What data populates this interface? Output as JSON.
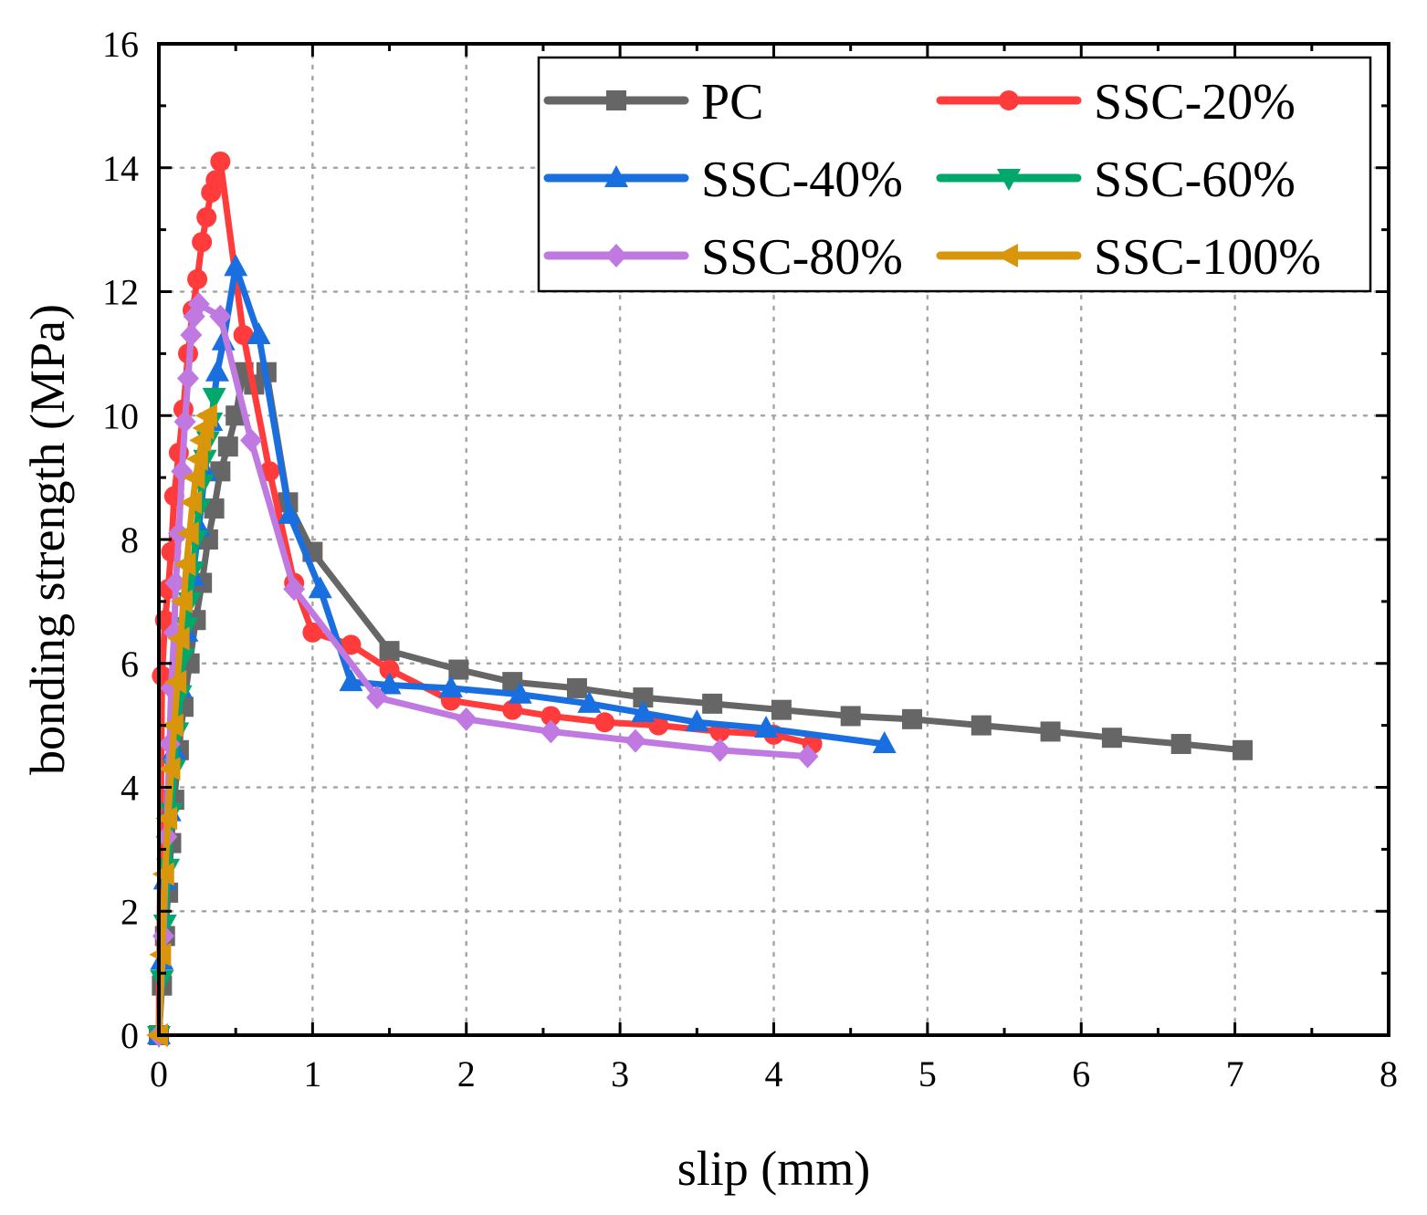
{
  "chart_data": {
    "type": "line",
    "title": "",
    "xlabel": "slip (mm)",
    "ylabel": "bonding strength (MPa)",
    "xlim": [
      0,
      8
    ],
    "ylim": [
      0,
      16
    ],
    "xticks": [
      "0",
      "1",
      "2",
      "3",
      "4",
      "5",
      "6",
      "7",
      "8"
    ],
    "yticks": [
      "0",
      "2",
      "4",
      "6",
      "8",
      "10",
      "12",
      "14",
      "16"
    ],
    "grid": true,
    "legend_position": "top-right",
    "series": [
      {
        "name": "PC",
        "color": "#666666",
        "marker": "square",
        "x": [
          0.0,
          0.02,
          0.04,
          0.06,
          0.08,
          0.1,
          0.13,
          0.16,
          0.2,
          0.24,
          0.28,
          0.32,
          0.36,
          0.4,
          0.45,
          0.5,
          0.55,
          0.62,
          0.7,
          0.84,
          1.0,
          1.5,
          1.95,
          2.3,
          2.72,
          3.15,
          3.6,
          4.05,
          4.5,
          4.9,
          5.35,
          5.8,
          6.2,
          6.65,
          7.05
        ],
        "y": [
          0.0,
          0.8,
          1.6,
          2.3,
          3.1,
          3.8,
          4.6,
          5.3,
          6.0,
          6.7,
          7.3,
          8.0,
          8.5,
          9.1,
          9.5,
          10.0,
          10.7,
          10.5,
          10.7,
          8.6,
          7.8,
          6.2,
          5.9,
          5.7,
          5.6,
          5.45,
          5.35,
          5.25,
          5.15,
          5.1,
          5.0,
          4.9,
          4.8,
          4.7,
          4.6
        ]
      },
      {
        "name": "SSC-20%",
        "color": "#ff3b3b",
        "marker": "circle",
        "x": [
          0.0,
          0.02,
          0.04,
          0.06,
          0.08,
          0.1,
          0.13,
          0.16,
          0.19,
          0.22,
          0.25,
          0.28,
          0.31,
          0.34,
          0.37,
          0.4,
          0.55,
          0.72,
          0.88,
          1.0,
          1.25,
          1.5,
          1.9,
          2.3,
          2.55,
          2.9,
          3.25,
          3.65,
          4.0,
          4.25
        ],
        "y": [
          0.0,
          5.8,
          6.7,
          7.2,
          7.8,
          8.7,
          9.4,
          10.1,
          11.0,
          11.7,
          12.2,
          12.8,
          13.2,
          13.6,
          13.8,
          14.1,
          11.3,
          9.1,
          7.3,
          6.5,
          6.3,
          5.9,
          5.4,
          5.25,
          5.15,
          5.05,
          5.0,
          4.9,
          4.85,
          4.7
        ]
      },
      {
        "name": "SSC-40%",
        "color": "#1a6fe0",
        "marker": "triangle-up",
        "x": [
          0.0,
          0.02,
          0.04,
          0.07,
          0.1,
          0.14,
          0.18,
          0.22,
          0.26,
          0.3,
          0.34,
          0.38,
          0.42,
          0.5,
          0.65,
          0.85,
          1.05,
          1.25,
          1.5,
          1.9,
          2.35,
          2.8,
          3.15,
          3.5,
          3.95,
          4.72
        ],
        "y": [
          0.0,
          1.2,
          2.5,
          3.6,
          4.6,
          5.6,
          6.5,
          7.4,
          8.2,
          9.1,
          9.9,
          10.7,
          11.2,
          12.4,
          11.3,
          8.4,
          7.2,
          5.7,
          5.65,
          5.6,
          5.5,
          5.35,
          5.2,
          5.05,
          4.95,
          4.7
        ]
      },
      {
        "name": "SSC-60%",
        "color": "#00a86b",
        "marker": "triangle-down",
        "x": [
          0.0,
          0.02,
          0.04,
          0.06,
          0.08,
          0.1,
          0.12,
          0.14,
          0.16,
          0.18,
          0.2,
          0.22,
          0.24,
          0.26,
          0.28,
          0.3,
          0.32,
          0.34,
          0.36
        ],
        "y": [
          0.0,
          0.9,
          1.8,
          2.7,
          3.6,
          4.3,
          4.9,
          5.5,
          6.1,
          6.6,
          7.0,
          7.5,
          8.0,
          8.5,
          8.9,
          9.3,
          9.6,
          9.9,
          10.3
        ]
      },
      {
        "name": "SSC-80%",
        "color": "#bf79e0",
        "marker": "diamond",
        "x": [
          0.0,
          0.03,
          0.05,
          0.07,
          0.08,
          0.1,
          0.11,
          0.13,
          0.15,
          0.17,
          0.19,
          0.21,
          0.23,
          0.26,
          0.4,
          0.6,
          0.88,
          1.42,
          2.0,
          2.55,
          3.1,
          3.65,
          4.22
        ],
        "y": [
          0.0,
          1.6,
          3.2,
          4.7,
          5.6,
          6.5,
          7.3,
          8.1,
          9.1,
          9.9,
          10.6,
          11.3,
          11.6,
          11.8,
          11.6,
          9.6,
          7.2,
          5.45,
          5.1,
          4.9,
          4.75,
          4.6,
          4.5
        ]
      },
      {
        "name": "SSC-100%",
        "color": "#d9960a",
        "marker": "triangle-left",
        "x": [
          0.0,
          0.02,
          0.04,
          0.06,
          0.08,
          0.1,
          0.12,
          0.14,
          0.16,
          0.18,
          0.2,
          0.22,
          0.24,
          0.26,
          0.28,
          0.3,
          0.32
        ],
        "y": [
          0.0,
          1.3,
          2.6,
          3.5,
          4.3,
          5.0,
          5.7,
          6.4,
          7.0,
          7.6,
          8.1,
          8.6,
          9.0,
          9.3,
          9.6,
          9.8,
          10.0
        ]
      }
    ]
  }
}
